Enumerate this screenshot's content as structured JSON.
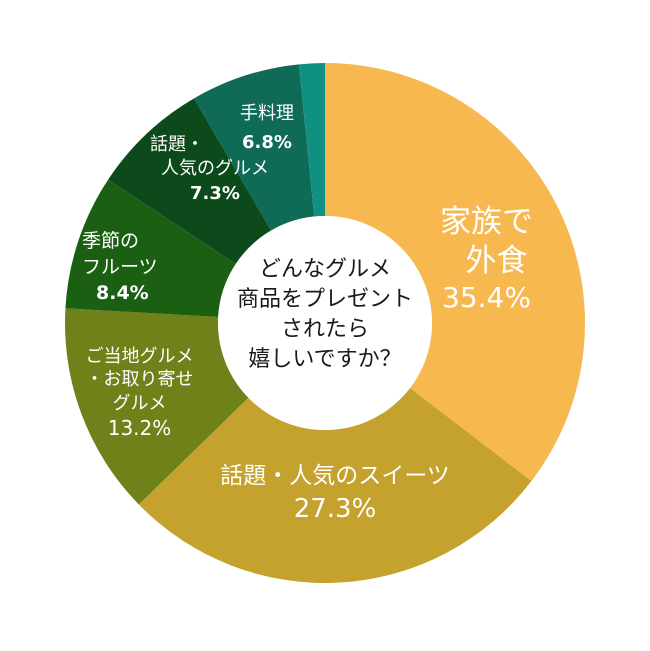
{
  "chart_data": {
    "type": "pie",
    "subtype": "donut",
    "title": "どんなグルメ商品をプレゼントされたら嬉しいですか？",
    "start_angle_deg": 0,
    "direction": "clockwise",
    "slices": [
      {
        "label": "家族で外食",
        "value": 35.4,
        "display": "35.4%",
        "color": "#F8B850"
      },
      {
        "label": "話題・人気のスイーツ",
        "value": 27.3,
        "display": "27.3%",
        "color": "#C5A22E"
      },
      {
        "label": "ご当地グルメ・お取り寄せグルメ",
        "value": 13.2,
        "display": "13.2%",
        "color": "#6F8219"
      },
      {
        "label": "季節のフルーツ",
        "value": 8.4,
        "display": "8.4%",
        "color": "#1B6012"
      },
      {
        "label": "話題・人気のグルメ",
        "value": 7.3,
        "display": "7.3%",
        "color": "#0C4A1B"
      },
      {
        "label": "手料理",
        "value": 6.8,
        "display": "6.8%",
        "color": "#0F6B56"
      },
      {
        "label": "",
        "value": 1.6,
        "display": "",
        "color": "#0F9080"
      }
    ],
    "legend": "none"
  },
  "center": {
    "lines": [
      "どんなグルメ",
      "商品をプレゼント",
      "されたら",
      "嬉しいですか？"
    ]
  },
  "labels": {
    "s0": {
      "lines": [
        "家族で",
        "外食"
      ],
      "pct": "35.4%"
    },
    "s1": {
      "lines": [
        "話題・人気のスイーツ"
      ],
      "pct": "27.3%"
    },
    "s2": {
      "lines": [
        "ご当地グルメ",
        "・お取り寄せ",
        "グルメ"
      ],
      "pct": "13.2%"
    },
    "s3": {
      "lines": [
        "季節の",
        "フルーツ"
      ],
      "pct": "8.4%"
    },
    "s4": {
      "lines": [
        "話題・",
        "人気のグルメ"
      ],
      "pct": "7.3%"
    },
    "s5": {
      "lines": [
        "手料理"
      ],
      "pct": "6.8%"
    }
  }
}
